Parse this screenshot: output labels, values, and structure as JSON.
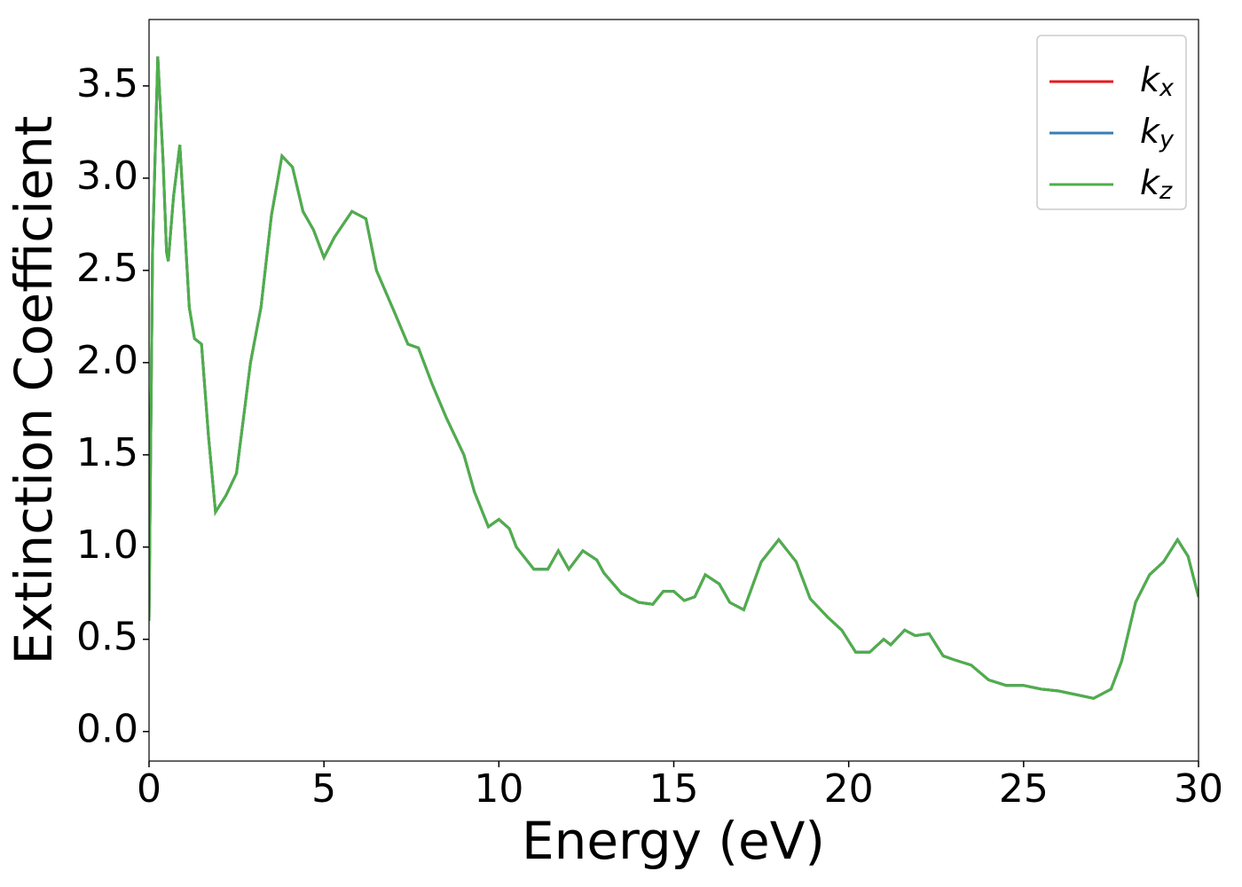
{
  "chart_data": {
    "type": "line",
    "xlabel": "Energy (eV)",
    "ylabel": "Extinction Coefficient",
    "x": [
      0.0,
      0.1,
      0.25,
      0.4,
      0.5,
      0.55,
      0.7,
      0.88,
      1.0,
      1.15,
      1.3,
      1.5,
      1.7,
      1.9,
      2.2,
      2.5,
      2.9,
      3.2,
      3.5,
      3.8,
      4.1,
      4.4,
      4.7,
      5.0,
      5.3,
      5.8,
      6.2,
      6.5,
      7.0,
      7.4,
      7.7,
      8.1,
      8.5,
      9.0,
      9.3,
      9.7,
      10.0,
      10.3,
      10.5,
      11.0,
      11.4,
      11.7,
      12.0,
      12.4,
      12.8,
      13.0,
      13.5,
      14.0,
      14.4,
      14.7,
      15.0,
      15.3,
      15.6,
      15.9,
      16.3,
      16.6,
      17.0,
      17.5,
      18.0,
      18.5,
      18.9,
      19.4,
      19.8,
      20.2,
      20.6,
      21.0,
      21.2,
      21.6,
      21.9,
      22.3,
      22.7,
      23.0,
      23.5,
      24.0,
      24.5,
      25.0,
      25.5,
      26.0,
      26.5,
      27.0,
      27.5,
      27.8,
      28.2,
      28.6,
      29.0,
      29.4,
      29.7,
      30.0
    ],
    "series": [
      {
        "name": "kx",
        "color": "#e41a1c",
        "values": [
          0.6,
          2.6,
          3.66,
          3.1,
          2.6,
          2.55,
          2.9,
          3.18,
          2.8,
          2.3,
          2.13,
          2.1,
          1.6,
          1.19,
          1.28,
          1.4,
          2.0,
          2.3,
          2.8,
          3.12,
          3.06,
          2.82,
          2.72,
          2.57,
          2.68,
          2.82,
          2.78,
          2.5,
          2.28,
          2.1,
          2.08,
          1.88,
          1.7,
          1.5,
          1.3,
          1.11,
          1.15,
          1.1,
          1.0,
          0.88,
          0.88,
          0.98,
          0.88,
          0.98,
          0.93,
          0.86,
          0.75,
          0.7,
          0.69,
          0.76,
          0.76,
          0.71,
          0.73,
          0.85,
          0.8,
          0.7,
          0.66,
          0.92,
          1.04,
          0.92,
          0.72,
          0.62,
          0.55,
          0.43,
          0.43,
          0.5,
          0.47,
          0.55,
          0.52,
          0.53,
          0.41,
          0.39,
          0.36,
          0.28,
          0.25,
          0.25,
          0.23,
          0.22,
          0.2,
          0.18,
          0.23,
          0.38,
          0.7,
          0.85,
          0.92,
          1.04,
          0.95,
          0.73
        ]
      },
      {
        "name": "ky",
        "color": "#377eb8",
        "values": [
          0.6,
          2.6,
          3.66,
          3.1,
          2.6,
          2.55,
          2.9,
          3.18,
          2.8,
          2.3,
          2.13,
          2.1,
          1.6,
          1.19,
          1.28,
          1.4,
          2.0,
          2.3,
          2.8,
          3.12,
          3.06,
          2.82,
          2.72,
          2.57,
          2.68,
          2.82,
          2.78,
          2.5,
          2.28,
          2.1,
          2.08,
          1.88,
          1.7,
          1.5,
          1.3,
          1.11,
          1.15,
          1.1,
          1.0,
          0.88,
          0.88,
          0.98,
          0.88,
          0.98,
          0.93,
          0.86,
          0.75,
          0.7,
          0.69,
          0.76,
          0.76,
          0.71,
          0.73,
          0.85,
          0.8,
          0.7,
          0.66,
          0.92,
          1.04,
          0.92,
          0.72,
          0.62,
          0.55,
          0.43,
          0.43,
          0.5,
          0.47,
          0.55,
          0.52,
          0.53,
          0.41,
          0.39,
          0.36,
          0.28,
          0.25,
          0.25,
          0.23,
          0.22,
          0.2,
          0.18,
          0.23,
          0.38,
          0.7,
          0.85,
          0.92,
          1.04,
          0.95,
          0.73
        ]
      },
      {
        "name": "kz",
        "color": "#4daf4a",
        "values": [
          0.6,
          2.6,
          3.66,
          3.1,
          2.6,
          2.55,
          2.9,
          3.18,
          2.8,
          2.3,
          2.13,
          2.1,
          1.6,
          1.19,
          1.28,
          1.4,
          2.0,
          2.3,
          2.8,
          3.12,
          3.06,
          2.82,
          2.72,
          2.57,
          2.68,
          2.82,
          2.78,
          2.5,
          2.28,
          2.1,
          2.08,
          1.88,
          1.7,
          1.5,
          1.3,
          1.11,
          1.15,
          1.1,
          1.0,
          0.88,
          0.88,
          0.98,
          0.88,
          0.98,
          0.93,
          0.86,
          0.75,
          0.7,
          0.69,
          0.76,
          0.76,
          0.71,
          0.73,
          0.85,
          0.8,
          0.7,
          0.66,
          0.92,
          1.04,
          0.92,
          0.72,
          0.62,
          0.55,
          0.43,
          0.43,
          0.5,
          0.47,
          0.55,
          0.52,
          0.53,
          0.41,
          0.39,
          0.36,
          0.28,
          0.25,
          0.25,
          0.23,
          0.22,
          0.2,
          0.18,
          0.23,
          0.38,
          0.7,
          0.85,
          0.92,
          1.04,
          0.95,
          0.73
        ]
      }
    ],
    "xlim": [
      0,
      30
    ],
    "xticks": [
      0,
      5,
      10,
      15,
      20,
      25,
      30
    ],
    "ylim": [
      -0.16,
      3.86
    ],
    "yticks": [
      {
        "value": 0,
        "label": "0.0"
      },
      {
        "value": 0.5,
        "label": "0.5"
      },
      {
        "value": 1,
        "label": "1.0"
      },
      {
        "value": 1.5,
        "label": "1.5"
      },
      {
        "value": 2,
        "label": "2.0"
      },
      {
        "value": 2.5,
        "label": "2.5"
      },
      {
        "value": 3,
        "label": "3.0"
      },
      {
        "value": 3.5,
        "label": "3.5"
      }
    ],
    "legend": "upper right",
    "grid": false
  }
}
